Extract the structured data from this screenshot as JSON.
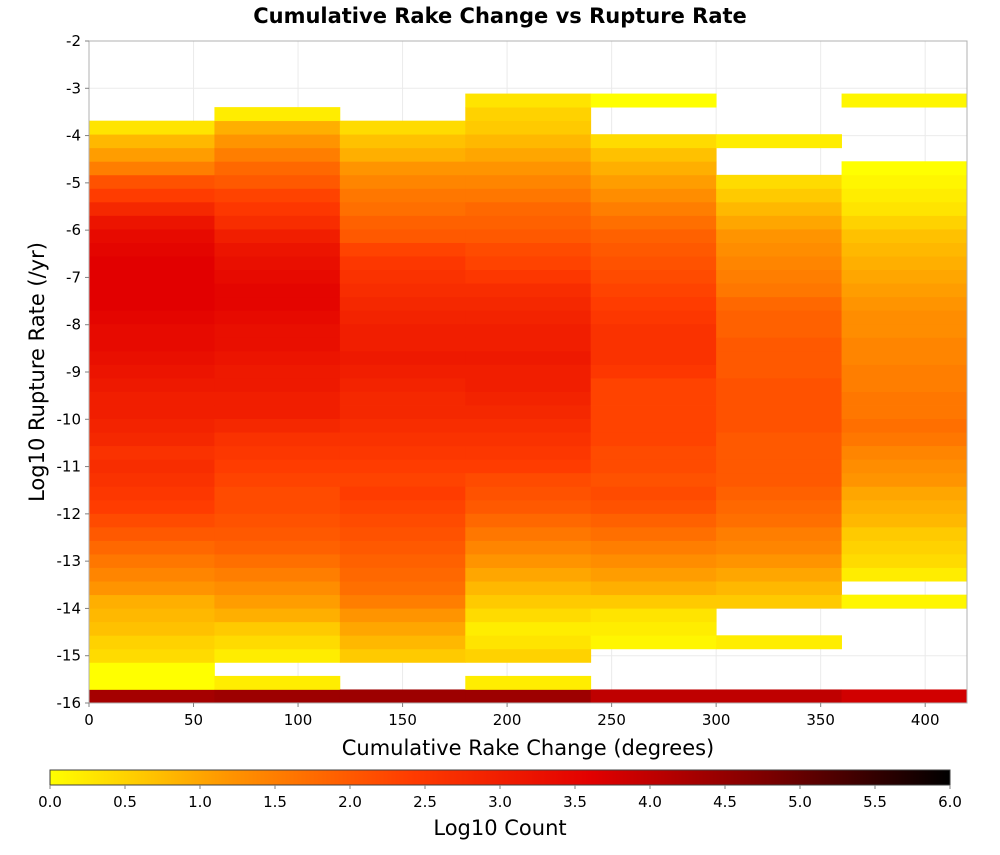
{
  "chart_data": {
    "type": "heatmap",
    "title": "Cumulative Rake Change vs Rupture Rate",
    "xlabel": "Cumulative Rake Change (degrees)",
    "ylabel": "Log10 Rupture Rate (/yr)",
    "xlim": [
      0,
      420
    ],
    "ylim": [
      -16,
      -2
    ],
    "x_ticks": [
      "0",
      "50",
      "100",
      "150",
      "200",
      "250",
      "300",
      "350",
      "400"
    ],
    "y_ticks": [
      "-2",
      "-3",
      "-4",
      "-5",
      "-6",
      "-7",
      "-8",
      "-9",
      "-10",
      "-11",
      "-12",
      "-13",
      "-14",
      "-15",
      "-16"
    ],
    "grid": true,
    "bin_width_x": 60,
    "bin_height_y": 0.2864,
    "y_bin_origin": -16,
    "colorbar": {
      "label": "Log10 Count",
      "range": [
        0,
        6
      ],
      "ticks": [
        "0.0",
        "0.5",
        "1.0",
        "1.5",
        "2.0",
        "2.5",
        "3.0",
        "3.5",
        "4.0",
        "4.5",
        "5.0",
        "5.5",
        "6.0"
      ],
      "colors": [
        "#ffff00",
        "#ff9400",
        "#ff3c00",
        "#e20000",
        "#7a0000",
        "#000000"
      ],
      "position": "bottom"
    },
    "columns": [
      {
        "x0": 0,
        "x1": 60,
        "log10_count": [
          4.3,
          0.0,
          0.0,
          0.4,
          0.5,
          0.7,
          0.8,
          0.9,
          1.2,
          1.4,
          1.6,
          1.8,
          2.0,
          2.2,
          2.4,
          2.5,
          2.6,
          2.7,
          2.6,
          2.8,
          2.9,
          3.0,
          3.0,
          3.1,
          3.2,
          3.3,
          3.4,
          3.4,
          3.5,
          3.6,
          3.6,
          3.6,
          3.6,
          3.5,
          3.4,
          3.2,
          2.8,
          2.4,
          2.1,
          1.5,
          1.1,
          0.8,
          0.3,
          null,
          null,
          null,
          null,
          null,
          null
        ]
      },
      {
        "x0": 60,
        "x1": 120,
        "log10_count": [
          4.4,
          0.2,
          null,
          0.2,
          0.4,
          0.6,
          0.9,
          1.1,
          1.3,
          1.5,
          1.7,
          1.9,
          2.0,
          2.1,
          2.2,
          2.2,
          2.3,
          2.4,
          2.5,
          2.6,
          2.8,
          3.0,
          3.0,
          3.1,
          3.1,
          3.2,
          3.3,
          3.3,
          3.4,
          3.5,
          3.5,
          3.4,
          3.3,
          3.2,
          3.0,
          2.7,
          2.5,
          2.3,
          2.0,
          1.8,
          1.5,
          1.2,
          0.9,
          0.2,
          null,
          null,
          null,
          null,
          null
        ]
      },
      {
        "x0": 120,
        "x1": 180,
        "log10_count": [
          4.4,
          null,
          null,
          0.6,
          0.8,
          1.0,
          1.2,
          1.5,
          1.7,
          1.8,
          1.9,
          2.0,
          2.1,
          2.2,
          2.3,
          2.4,
          2.3,
          2.4,
          2.5,
          2.6,
          2.7,
          2.8,
          2.8,
          2.9,
          3.0,
          3.1,
          3.0,
          3.0,
          2.9,
          2.8,
          2.7,
          2.6,
          2.5,
          2.3,
          2.0,
          1.9,
          1.7,
          1.6,
          1.4,
          1.2,
          0.9,
          0.7,
          0.4,
          null,
          null,
          null,
          null,
          null,
          null
        ]
      },
      {
        "x0": 180,
        "x1": 240,
        "log10_count": [
          4.4,
          0.2,
          null,
          0.5,
          0.3,
          0.2,
          0.4,
          0.6,
          0.8,
          1.0,
          1.2,
          1.4,
          1.6,
          1.8,
          2.0,
          2.1,
          2.2,
          2.4,
          2.5,
          2.6,
          2.7,
          2.8,
          2.9,
          3.0,
          3.0,
          3.1,
          3.0,
          3.0,
          2.9,
          2.8,
          2.7,
          2.5,
          2.3,
          2.2,
          2.0,
          1.9,
          1.8,
          1.6,
          1.4,
          1.2,
          1.0,
          0.8,
          0.6,
          0.5,
          0.3,
          null,
          null,
          null,
          null
        ]
      },
      {
        "x0": 240,
        "x1": 300,
        "log10_count": [
          4.0,
          null,
          null,
          null,
          0.1,
          0.2,
          0.3,
          0.6,
          0.9,
          1.1,
          1.3,
          1.5,
          1.7,
          1.9,
          2.1,
          2.2,
          2.1,
          2.2,
          2.2,
          2.3,
          2.3,
          2.3,
          2.3,
          2.3,
          2.5,
          2.6,
          2.6,
          2.6,
          2.5,
          2.4,
          2.3,
          2.2,
          2.1,
          2.0,
          1.9,
          1.7,
          1.5,
          1.3,
          1.1,
          0.9,
          0.7,
          0.4,
          null,
          null,
          0.0,
          null,
          null,
          null,
          null
        ]
      },
      {
        "x0": 300,
        "x1": 360,
        "log10_count": [
          4.0,
          null,
          null,
          null,
          0.2,
          null,
          null,
          0.6,
          0.8,
          1.0,
          1.2,
          1.4,
          1.5,
          1.7,
          1.8,
          1.9,
          2.0,
          2.0,
          2.0,
          2.0,
          2.1,
          2.1,
          2.1,
          2.1,
          2.0,
          2.0,
          2.0,
          1.9,
          1.9,
          1.8,
          1.6,
          1.5,
          1.4,
          1.3,
          1.2,
          1.0,
          0.8,
          0.6,
          0.4,
          null,
          null,
          0.2,
          null,
          null,
          null,
          null,
          null,
          null,
          null
        ]
      },
      {
        "x0": 360,
        "x1": 420,
        "log10_count": [
          3.8,
          null,
          null,
          null,
          null,
          null,
          null,
          0.1,
          null,
          0.2,
          0.4,
          0.5,
          0.6,
          0.8,
          0.9,
          1.0,
          1.2,
          1.3,
          1.4,
          1.6,
          1.7,
          1.6,
          1.6,
          1.5,
          1.5,
          1.4,
          1.4,
          1.3,
          1.3,
          1.2,
          1.1,
          1.0,
          0.9,
          0.8,
          0.7,
          0.5,
          0.3,
          0.2,
          0.1,
          0.0,
          null,
          null,
          null,
          null,
          0.1,
          null,
          null,
          null,
          null
        ]
      }
    ]
  }
}
